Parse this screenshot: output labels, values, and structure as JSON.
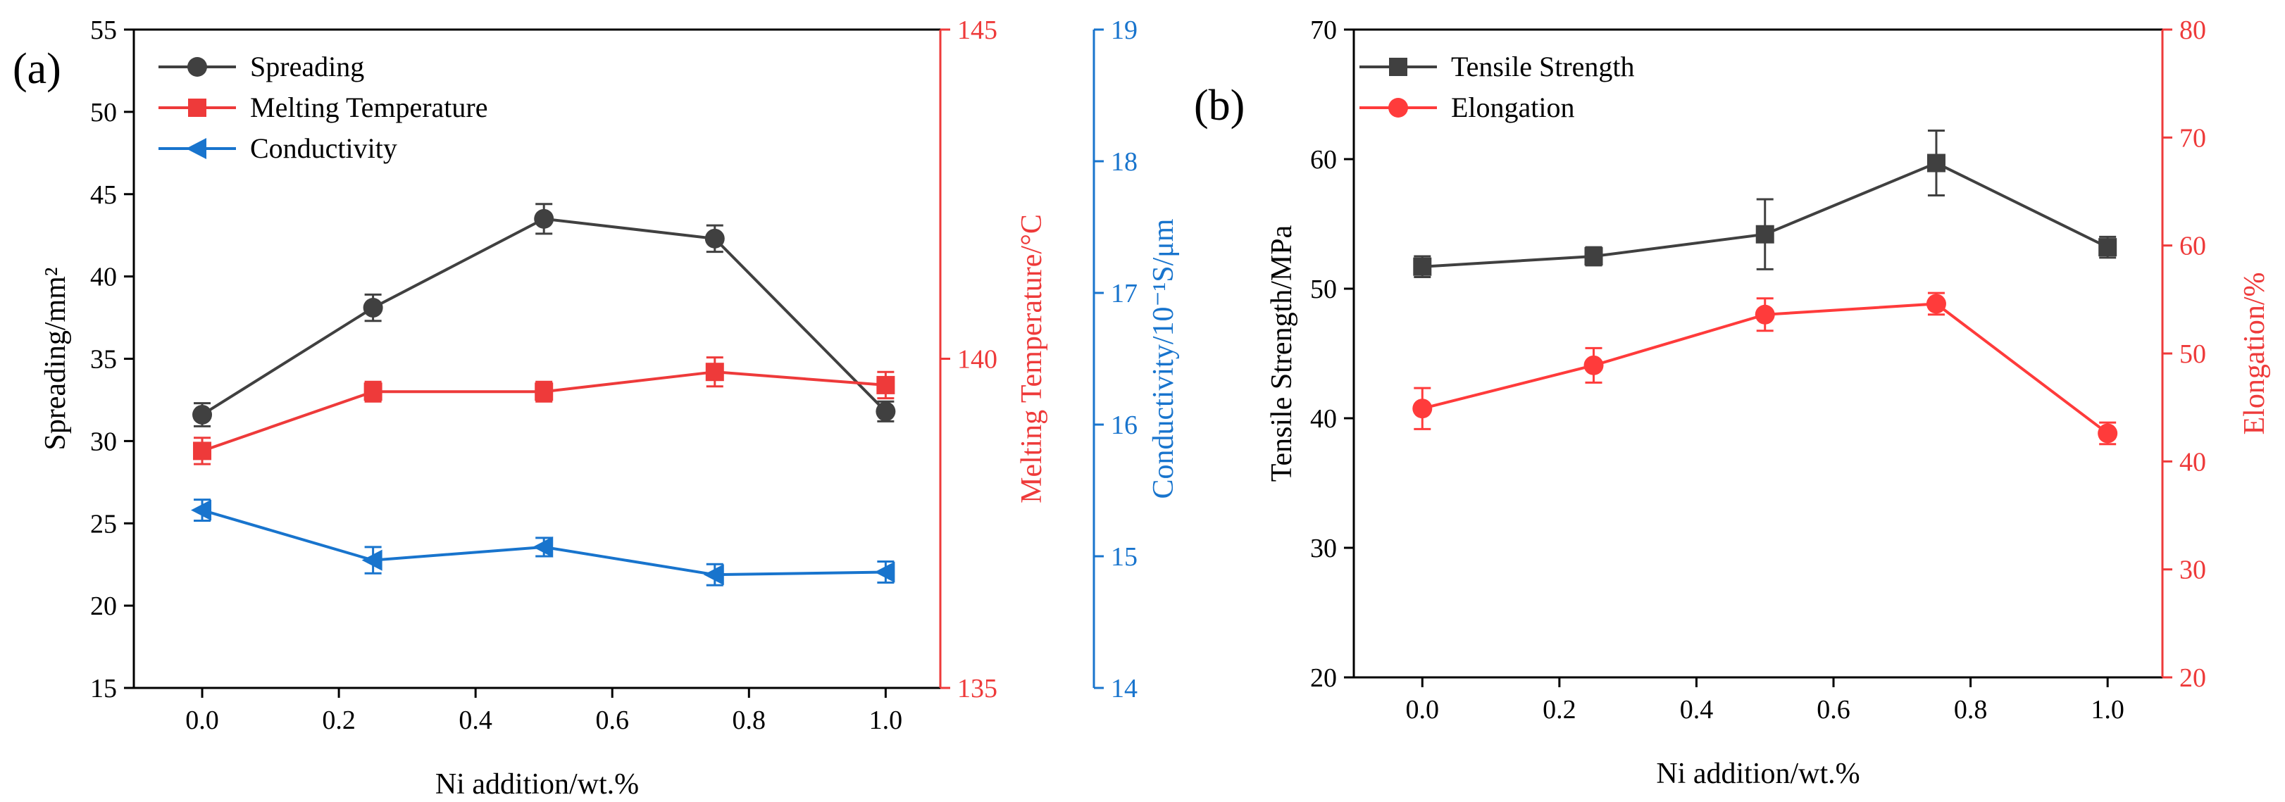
{
  "chart_data": [
    {
      "panel_label": "(a)",
      "type": "line",
      "xlabel": "Ni addition/wt.%",
      "x": [
        0.0,
        0.25,
        0.5,
        0.75,
        1.0
      ],
      "x_ticks": [
        "0.0",
        "0.2",
        "0.4",
        "0.6",
        "0.8",
        "1.0"
      ],
      "x_tick_values": [
        0.0,
        0.2,
        0.4,
        0.6,
        0.8,
        1.0
      ],
      "xlim": [
        -0.1,
        1.08
      ],
      "axes": [
        {
          "side": "left",
          "label": "Spreading/mm²",
          "ylim": [
            15,
            55
          ],
          "ticks": [
            15,
            20,
            25,
            30,
            35,
            40,
            45,
            50,
            55
          ],
          "color": "#000000"
        },
        {
          "side": "right",
          "label": "Melting Temperature/°C",
          "ylim": [
            135,
            145
          ],
          "ticks": [
            135,
            140,
            145
          ],
          "color": "#ee3a3a"
        },
        {
          "side": "right-offset",
          "label": "Conductivity/10⁻¹S/μm",
          "ylim": [
            14,
            19
          ],
          "ticks": [
            14,
            15,
            16,
            17,
            18,
            19
          ],
          "color": "#1874cd"
        }
      ],
      "series": [
        {
          "name": "Spreading",
          "axis": 0,
          "marker": "circle",
          "color": "#404040",
          "values": [
            31.6,
            38.1,
            43.5,
            42.3,
            31.8
          ],
          "errors": [
            0.7,
            0.8,
            0.9,
            0.8,
            0.6
          ]
        },
        {
          "name": "Melting Temperature",
          "axis": 1,
          "marker": "square",
          "color": "#ee3a3a",
          "values": [
            138.6,
            139.5,
            139.5,
            139.8,
            139.6
          ],
          "errors": [
            0.2,
            0.15,
            0.15,
            0.22,
            0.2
          ]
        },
        {
          "name": "Conductivity",
          "axis": 2,
          "marker": "triangle-left",
          "color": "#1874cd",
          "values": [
            15.35,
            14.97,
            15.07,
            14.86,
            14.88
          ],
          "errors": [
            0.08,
            0.1,
            0.07,
            0.08,
            0.08
          ]
        }
      ],
      "legend": "top-left"
    },
    {
      "panel_label": "(b)",
      "type": "line",
      "xlabel": "Ni addition/wt.%",
      "x": [
        0.0,
        0.25,
        0.5,
        0.75,
        1.0
      ],
      "x_ticks": [
        "0.0",
        "0.2",
        "0.4",
        "0.6",
        "0.8",
        "1.0"
      ],
      "x_tick_values": [
        0.0,
        0.2,
        0.4,
        0.6,
        0.8,
        1.0
      ],
      "xlim": [
        -0.1,
        1.08
      ],
      "axes": [
        {
          "side": "left",
          "label": "Tensile Strength/MPa",
          "ylim": [
            20,
            70
          ],
          "ticks": [
            20,
            30,
            40,
            50,
            60,
            70
          ],
          "color": "#000000"
        },
        {
          "side": "right",
          "label": "Elongation/%",
          "ylim": [
            20,
            80
          ],
          "ticks": [
            20,
            30,
            40,
            50,
            60,
            70,
            80
          ],
          "color": "#ee3a3a"
        }
      ],
      "series": [
        {
          "name": "Tensile Strength",
          "axis": 0,
          "marker": "square",
          "color": "#404040",
          "values": [
            51.7,
            52.5,
            54.2,
            59.7,
            53.2
          ],
          "errors": [
            0.8,
            0.7,
            2.7,
            2.5,
            0.8
          ]
        },
        {
          "name": "Elongation",
          "axis": 1,
          "marker": "circle",
          "color": "#ff3b3b",
          "values": [
            44.9,
            48.9,
            53.6,
            54.6,
            42.6
          ],
          "errors": [
            1.9,
            1.6,
            1.5,
            1.0,
            1.0
          ]
        }
      ],
      "legend": "top-left"
    }
  ]
}
